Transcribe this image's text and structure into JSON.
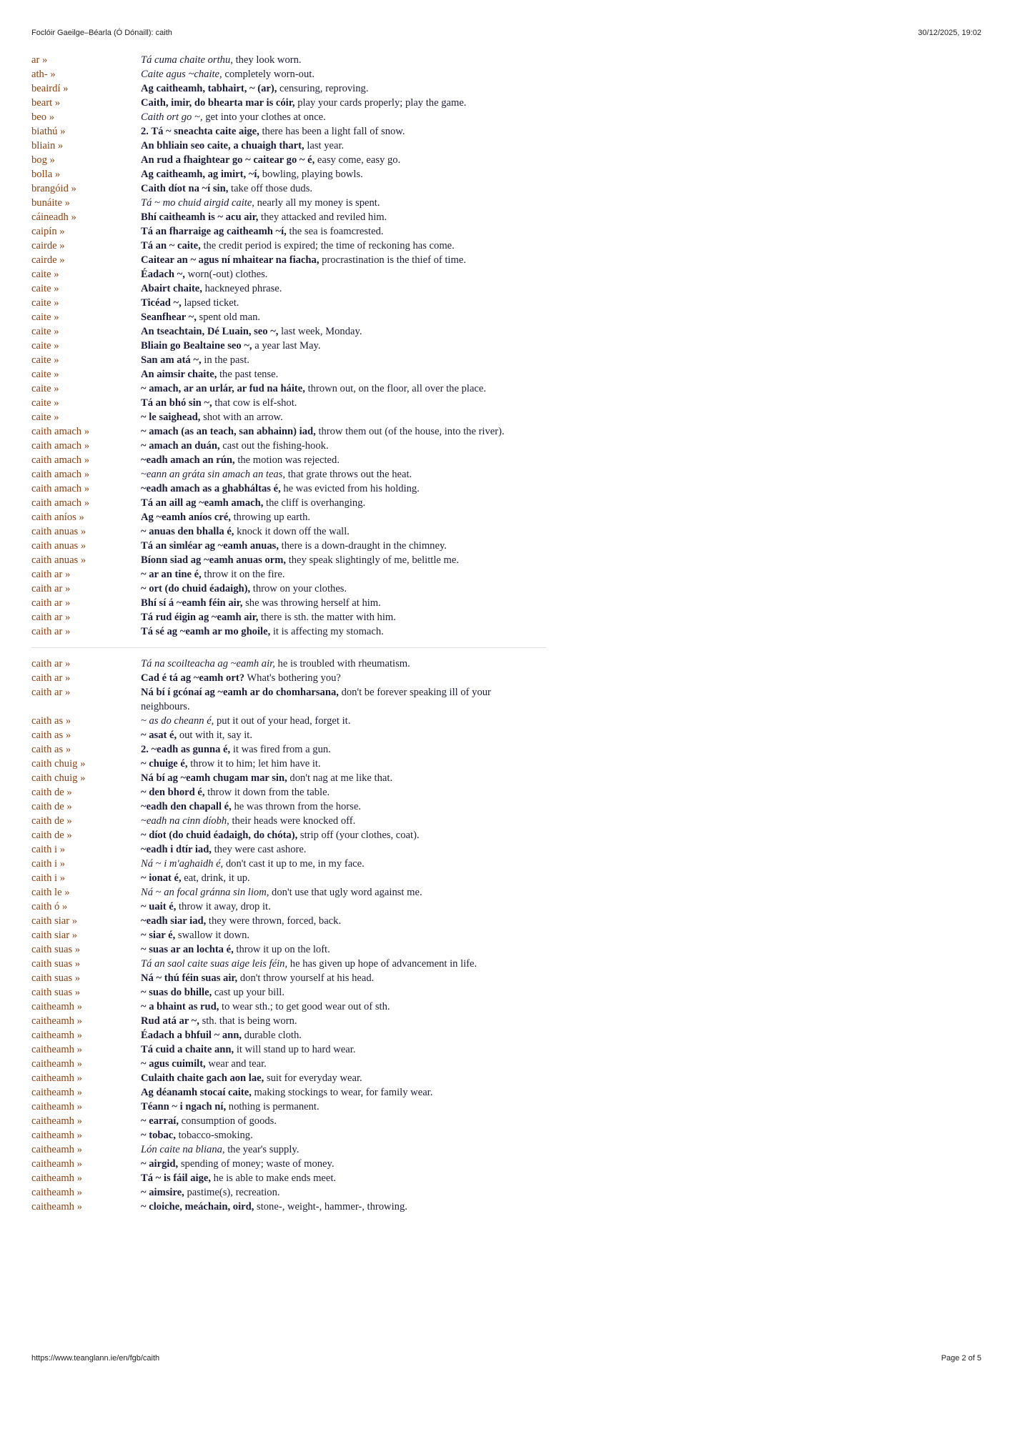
{
  "header": {
    "title": "Foclóir Gaeilge–Béarla (Ó Dónaill): caith",
    "date": "30/12/2025, 19:02"
  },
  "sections": [
    {
      "entries": [
        {
          "head": "ar »",
          "ga": "Tá cuma chaite orthu,",
          "en": "they look worn.",
          "style": "italic"
        },
        {
          "head": "ath- »",
          "ga": "Caite agus ~chaite,",
          "en": "completely worn-out.",
          "style": "italic"
        },
        {
          "head": "beairdí »",
          "ga": "Ag caitheamh, tabhairt, ~ (ar),",
          "en": "censuring, reproving.",
          "style": "bold"
        },
        {
          "head": "beart »",
          "ga": "Caith, imir, do bhearta mar is cóir,",
          "en": "play your cards properly; play the game.",
          "style": "bold"
        },
        {
          "head": "beo »",
          "ga": "Caith ort go ~,",
          "en": "get into your clothes at once.",
          "style": "italic"
        },
        {
          "head": "biathú »",
          "ga": "2. Tá ~ sneachta caite aige,",
          "en": "there has been a light fall of snow.",
          "style": "bold"
        },
        {
          "head": "bliain »",
          "ga": "An bhliain seo caite, a chuaigh thart,",
          "en": "last year.",
          "style": "bold"
        },
        {
          "head": "bog »",
          "ga": "An rud a fhaightear go ~ caitear go ~ é,",
          "en": "easy come, easy go.",
          "style": "bold"
        },
        {
          "head": "bolla »",
          "ga": "Ag caitheamh, ag imirt, ~í,",
          "en": "bowling, playing bowls.",
          "style": "bold"
        },
        {
          "head": "brangóid »",
          "ga": "Caith díot na ~í sin,",
          "en": "take off those duds.",
          "style": "bold"
        },
        {
          "head": "bunáite »",
          "ga": "Tá ~ mo chuid airgid caite,",
          "en": "nearly all my money is spent.",
          "style": "italic"
        },
        {
          "head": "cáineadh »",
          "ga": "Bhí caitheamh is ~ acu air,",
          "en": "they attacked and reviled him.",
          "style": "bold"
        },
        {
          "head": "caipín »",
          "ga": "Tá an fharraige ag caitheamh ~í,",
          "en": "the sea is foamcrested.",
          "style": "bold"
        },
        {
          "head": "cairde »",
          "ga": "Tá an ~ caite,",
          "en": "the credit period is expired; the time of reckoning has come.",
          "style": "bold"
        },
        {
          "head": "cairde »",
          "ga": "Caitear an ~ agus ní mhaitear na fiacha,",
          "en": "procrastination is the thief of time.",
          "style": "bold"
        },
        {
          "head": "caite »",
          "ga": "Éadach ~,",
          "en": "worn(-out) clothes.",
          "style": "bold"
        },
        {
          "head": "caite »",
          "ga": "Abairt chaite,",
          "en": "hackneyed phrase.",
          "style": "bold"
        },
        {
          "head": "caite »",
          "ga": "Ticéad ~,",
          "en": "lapsed ticket.",
          "style": "bold"
        },
        {
          "head": "caite »",
          "ga": "Seanfhear ~,",
          "en": "spent old man.",
          "style": "bold"
        },
        {
          "head": "caite »",
          "ga": "An tseachtain, Dé Luain, seo ~,",
          "en": "last week, Monday.",
          "style": "bold"
        },
        {
          "head": "caite »",
          "ga": "Bliain go Bealtaine seo ~,",
          "en": "a year last May.",
          "style": "bold"
        },
        {
          "head": "caite »",
          "ga": "San am atá ~,",
          "en": "in the past.",
          "style": "bold"
        },
        {
          "head": "caite »",
          "ga": "An aimsir chaite,",
          "en": "the past tense.",
          "style": "bold"
        },
        {
          "head": "caite »",
          "ga": "~ amach, ar an urlár, ar fud na háite,",
          "en": "thrown out, on the floor, all over the place.",
          "style": "bold"
        },
        {
          "head": "caite »",
          "ga": "Tá an bhó sin ~,",
          "en": "that cow is elf-shot.",
          "style": "bold"
        },
        {
          "head": "caite »",
          "ga": "~ le saighead,",
          "en": "shot with an arrow.",
          "style": "bold"
        },
        {
          "head": "caith amach »",
          "ga": "~ amach (as an teach, san abhainn) iad,",
          "en": "throw them out (of the house, into the river).",
          "style": "bold"
        },
        {
          "head": "caith amach »",
          "ga": "~ amach an duán,",
          "en": "cast out the fishing-hook.",
          "style": "bold"
        },
        {
          "head": "caith amach »",
          "ga": "~eadh amach an rún,",
          "en": "the motion was rejected.",
          "style": "bold"
        },
        {
          "head": "caith amach »",
          "ga": "~eann an gráta sin amach an teas,",
          "en": "that grate throws out the heat.",
          "style": "italic"
        },
        {
          "head": "caith amach »",
          "ga": "~eadh amach as a ghabháltas é,",
          "en": "he was evicted from his holding.",
          "style": "bold"
        },
        {
          "head": "caith amach »",
          "ga": "Tá an aill ag ~eamh amach,",
          "en": "the cliff is overhanging.",
          "style": "bold"
        },
        {
          "head": "caith aníos »",
          "ga": "Ag ~eamh aníos cré,",
          "en": "throwing up earth.",
          "style": "bold"
        },
        {
          "head": "caith anuas »",
          "ga": "~ anuas den bhalla é,",
          "en": "knock it down off the wall.",
          "style": "bold"
        },
        {
          "head": "caith anuas »",
          "ga": "Tá an simléar ag ~eamh anuas,",
          "en": "there is a down-draught in the chimney.",
          "style": "bold"
        },
        {
          "head": "caith anuas »",
          "ga": "Bíonn siad ag ~eamh anuas orm,",
          "en": "they speak slightingly of me, belittle me.",
          "style": "bold"
        },
        {
          "head": "caith ar »",
          "ga": "~ ar an tine é,",
          "en": "throw it on the fire.",
          "style": "bold"
        },
        {
          "head": "caith ar »",
          "ga": "~ ort (do chuid éadaigh),",
          "en": "throw on your clothes.",
          "style": "bold"
        },
        {
          "head": "caith ar »",
          "ga": "Bhí sí á ~eamh féin air,",
          "en": "she was throwing herself at him.",
          "style": "bold"
        },
        {
          "head": "caith ar »",
          "ga": "Tá rud éigin ag ~eamh air,",
          "en": "there is sth. the matter with him.",
          "style": "bold"
        },
        {
          "head": "caith ar »",
          "ga": "Tá sé ag ~eamh ar mo ghoile,",
          "en": "it is affecting my stomach.",
          "style": "bold"
        }
      ]
    },
    {
      "entries": [
        {
          "head": "caith ar »",
          "ga": "Tá na scoilteacha ag ~eamh air,",
          "en": "he is troubled with rheumatism.",
          "style": "italic"
        },
        {
          "head": "caith ar »",
          "ga": "Cad é tá ag ~eamh ort?",
          "en": "What's bothering you?",
          "style": "bold"
        },
        {
          "head": "caith ar »",
          "ga": "Ná bí í gcónaí ag ~eamh ar do chomharsana,",
          "en": "don't be forever speaking ill of your neighbours.",
          "style": "bold"
        },
        {
          "head": "caith as »",
          "ga": "~ as do cheann é,",
          "en": "put it out of your head, forget it.",
          "style": "italic"
        },
        {
          "head": "caith as »",
          "ga": "~ asat é,",
          "en": "out with it, say it.",
          "style": "bold"
        },
        {
          "head": "caith as »",
          "ga": "2. ~eadh as gunna é,",
          "en": "it was fired from a gun.",
          "style": "bold"
        },
        {
          "head": "caith chuig »",
          "ga": "~ chuige é,",
          "en": "throw it to him; let him have it.",
          "style": "bold"
        },
        {
          "head": "caith chuig »",
          "ga": "Ná bí ag ~eamh chugam mar sin,",
          "en": "don't nag at me like that.",
          "style": "bold"
        },
        {
          "head": "caith de »",
          "ga": "~ den bhord é,",
          "en": "throw it down from the table.",
          "style": "bold"
        },
        {
          "head": "caith de »",
          "ga": "~eadh den chapall é,",
          "en": "he was thrown from the horse.",
          "style": "bold"
        },
        {
          "head": "caith de »",
          "ga": "~eadh na cinn díobh,",
          "en": "their heads were knocked off.",
          "style": "italic"
        },
        {
          "head": "caith de »",
          "ga": "~ díot (do chuid éadaigh, do chóta),",
          "en": "strip off (your clothes, coat).",
          "style": "bold"
        },
        {
          "head": "caith i »",
          "ga": "~eadh i dtír iad,",
          "en": "they were cast ashore.",
          "style": "bold"
        },
        {
          "head": "caith i »",
          "ga": "Ná ~ i m'aghaidh é,",
          "en": "don't cast it up to me, in my face.",
          "style": "italic"
        },
        {
          "head": "caith i »",
          "ga": "~ ionat é,",
          "en": "eat, drink, it up.",
          "style": "bold"
        },
        {
          "head": "caith le »",
          "ga": "Ná ~ an focal gránna sin liom,",
          "en": "don't use that ugly word against me.",
          "style": "italic"
        },
        {
          "head": "caith ó »",
          "ga": "~ uait é,",
          "en": "throw it away, drop it.",
          "style": "bold"
        },
        {
          "head": "caith siar »",
          "ga": "~eadh siar iad,",
          "en": "they were thrown, forced, back.",
          "style": "bold"
        },
        {
          "head": "caith siar »",
          "ga": "~ siar é,",
          "en": "swallow it down.",
          "style": "bold"
        },
        {
          "head": "caith suas »",
          "ga": "~ suas ar an lochta é,",
          "en": "throw it up on the loft.",
          "style": "bold"
        },
        {
          "head": "caith suas »",
          "ga": "Tá an saol caite suas aige leis féin,",
          "en": "he has given up hope of advancement in life.",
          "style": "italic"
        },
        {
          "head": "caith suas »",
          "ga": "Ná ~ thú féin suas air,",
          "en": "don't throw yourself at his head.",
          "style": "bold"
        },
        {
          "head": "caith suas »",
          "ga": "~ suas do bhille,",
          "en": "cast up your bill.",
          "style": "bold"
        },
        {
          "head": "caitheamh »",
          "ga": "~ a bhaint as rud,",
          "en": "to wear sth.; to get good wear out of sth.",
          "style": "bold"
        },
        {
          "head": "caitheamh »",
          "ga": "Rud atá ar ~,",
          "en": "sth. that is being worn.",
          "style": "bold"
        },
        {
          "head": "caitheamh »",
          "ga": "Éadach a bhfuil ~ ann,",
          "en": "durable cloth.",
          "style": "bold"
        },
        {
          "head": "caitheamh »",
          "ga": "Tá cuid a chaite ann,",
          "en": "it will stand up to hard wear.",
          "style": "bold"
        },
        {
          "head": "caitheamh »",
          "ga": "~ agus cuimilt,",
          "en": "wear and tear.",
          "style": "bold"
        },
        {
          "head": "caitheamh »",
          "ga": "Culaith chaite gach aon lae,",
          "en": "suit for everyday wear.",
          "style": "bold"
        },
        {
          "head": "caitheamh »",
          "ga": "Ag déanamh stocaí caite,",
          "en": "making stockings to wear, for family wear.",
          "style": "bold"
        },
        {
          "head": "caitheamh »",
          "ga": "Téann ~ i ngach ní,",
          "en": "nothing is permanent.",
          "style": "bold"
        },
        {
          "head": "caitheamh »",
          "ga": "~ earraí,",
          "en": "consumption of goods.",
          "style": "bold"
        },
        {
          "head": "caitheamh »",
          "ga": "~ tobac,",
          "en": "tobacco-smoking.",
          "style": "bold"
        },
        {
          "head": "caitheamh »",
          "ga": "Lón caite na bliana,",
          "en": "the year's supply.",
          "style": "italic"
        },
        {
          "head": "caitheamh »",
          "ga": "~ airgid,",
          "en": "spending of money; waste of money.",
          "style": "bold"
        },
        {
          "head": "caitheamh »",
          "ga": "Tá ~ is fáil aige,",
          "en": "he is able to make ends meet.",
          "style": "bold"
        },
        {
          "head": "caitheamh »",
          "ga": "~ aimsire,",
          "en": "pastime(s), recreation.",
          "style": "bold"
        },
        {
          "head": "caitheamh »",
          "ga": "~ cloiche, meáchain, oird,",
          "en": "stone-, weight-, hammer-, throwing.",
          "style": "bold"
        }
      ]
    }
  ],
  "footer": {
    "url": "https://www.teanglann.ie/en/fgb/caith",
    "page": "Page 2 of 5"
  }
}
